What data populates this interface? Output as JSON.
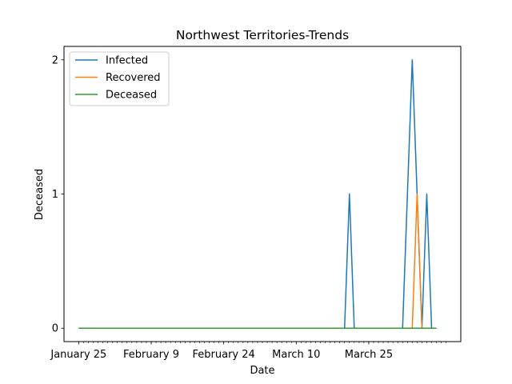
{
  "chart_data": {
    "type": "line",
    "title": "Northwest Territories-Trends",
    "xlabel": "Date",
    "ylabel": "Deceased",
    "x_start": "2020-01-25",
    "x_end": "2020-04-10",
    "x_tick_labels": [
      "January 25",
      "February 9",
      "February 24",
      "March 10",
      "March 25"
    ],
    "y_ticks": [
      0,
      1,
      2
    ],
    "ylim": [
      -0.1,
      2.1
    ],
    "legend_position": "top-left",
    "grid": false,
    "series": [
      {
        "name": "Infected",
        "color": "#1f77b4",
        "points": [
          [
            "2020-01-25",
            0
          ],
          [
            "2020-03-20",
            0
          ],
          [
            "2020-03-21",
            1
          ],
          [
            "2020-03-22",
            0
          ],
          [
            "2020-04-01",
            0
          ],
          [
            "2020-04-02",
            1
          ],
          [
            "2020-04-03",
            2
          ],
          [
            "2020-04-04",
            1
          ],
          [
            "2020-04-05",
            0
          ],
          [
            "2020-04-06",
            1
          ],
          [
            "2020-04-07",
            0
          ],
          [
            "2020-04-08",
            0
          ]
        ]
      },
      {
        "name": "Recovered",
        "color": "#ff7f0e",
        "points": [
          [
            "2020-04-03",
            0
          ],
          [
            "2020-04-04",
            1
          ],
          [
            "2020-04-05",
            0
          ],
          [
            "2020-04-08",
            0
          ]
        ]
      },
      {
        "name": "Deceased",
        "color": "#2ca02c",
        "points": [
          [
            "2020-01-25",
            0
          ],
          [
            "2020-04-08",
            0
          ]
        ]
      }
    ]
  }
}
